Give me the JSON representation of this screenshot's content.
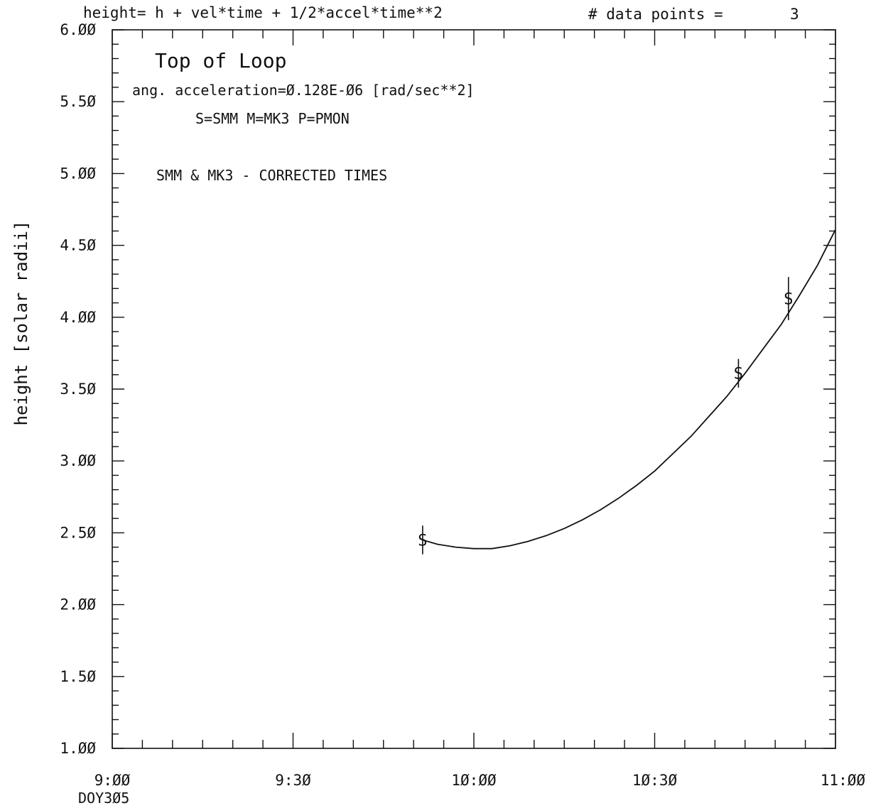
{
  "header": {
    "formula": "height= h + vel*time + 1/2*accel*time**2",
    "points_label": "# data points =",
    "points_value": "3"
  },
  "chart_data": {
    "type": "line",
    "title": "Top of Loop",
    "annotations": {
      "acceleration": "ang. acceleration=Ø.128E-Ø6 [rad/sec**2]",
      "legend_key": "S=SMM   M=MK3   P=PMON",
      "note": "SMM & MK3 - CORRECTED TIMES"
    },
    "ylabel": "height [solar radii]",
    "xlabel": "",
    "x_sublabel": "DOY3Ø5",
    "xlim": [
      540,
      660
    ],
    "ylim": [
      1.0,
      6.0
    ],
    "x_ticks": [
      {
        "v": 540,
        "label": "9:ØØ"
      },
      {
        "v": 570,
        "label": "9:3Ø"
      },
      {
        "v": 600,
        "label": "1Ø:ØØ"
      },
      {
        "v": 630,
        "label": "1Ø:3Ø"
      },
      {
        "v": 660,
        "label": "11:ØØ"
      }
    ],
    "y_ticks": [
      {
        "v": 1.0,
        "label": "1.ØØ"
      },
      {
        "v": 1.5,
        "label": "1.5Ø"
      },
      {
        "v": 2.0,
        "label": "2.ØØ"
      },
      {
        "v": 2.5,
        "label": "2.5Ø"
      },
      {
        "v": 3.0,
        "label": "3.ØØ"
      },
      {
        "v": 3.5,
        "label": "3.5Ø"
      },
      {
        "v": 4.0,
        "label": "4.ØØ"
      },
      {
        "v": 4.5,
        "label": "4.5Ø"
      },
      {
        "v": 5.0,
        "label": "5.ØØ"
      },
      {
        "v": 5.5,
        "label": "5.5Ø"
      },
      {
        "v": 6.0,
        "label": "6.ØØ"
      }
    ],
    "points": [
      {
        "symbol": "S",
        "x": 591.5,
        "y": 2.45,
        "err": 0.1
      },
      {
        "symbol": "S",
        "x": 643.9,
        "y": 3.61,
        "err": 0.1
      },
      {
        "symbol": "S",
        "x": 652.2,
        "y": 4.13,
        "err": 0.15
      }
    ],
    "fit_curve": {
      "x": [
        591.5,
        594,
        597,
        600,
        603,
        606,
        609,
        612,
        615,
        618,
        621,
        624,
        627,
        630,
        633,
        636,
        639,
        642,
        645,
        648,
        651,
        654,
        657,
        660
      ],
      "y": [
        2.45,
        2.42,
        2.4,
        2.39,
        2.39,
        2.41,
        2.44,
        2.48,
        2.53,
        2.59,
        2.66,
        2.74,
        2.83,
        2.93,
        3.05,
        3.17,
        3.31,
        3.45,
        3.61,
        3.78,
        3.95,
        4.15,
        4.36,
        4.61
      ]
    }
  }
}
